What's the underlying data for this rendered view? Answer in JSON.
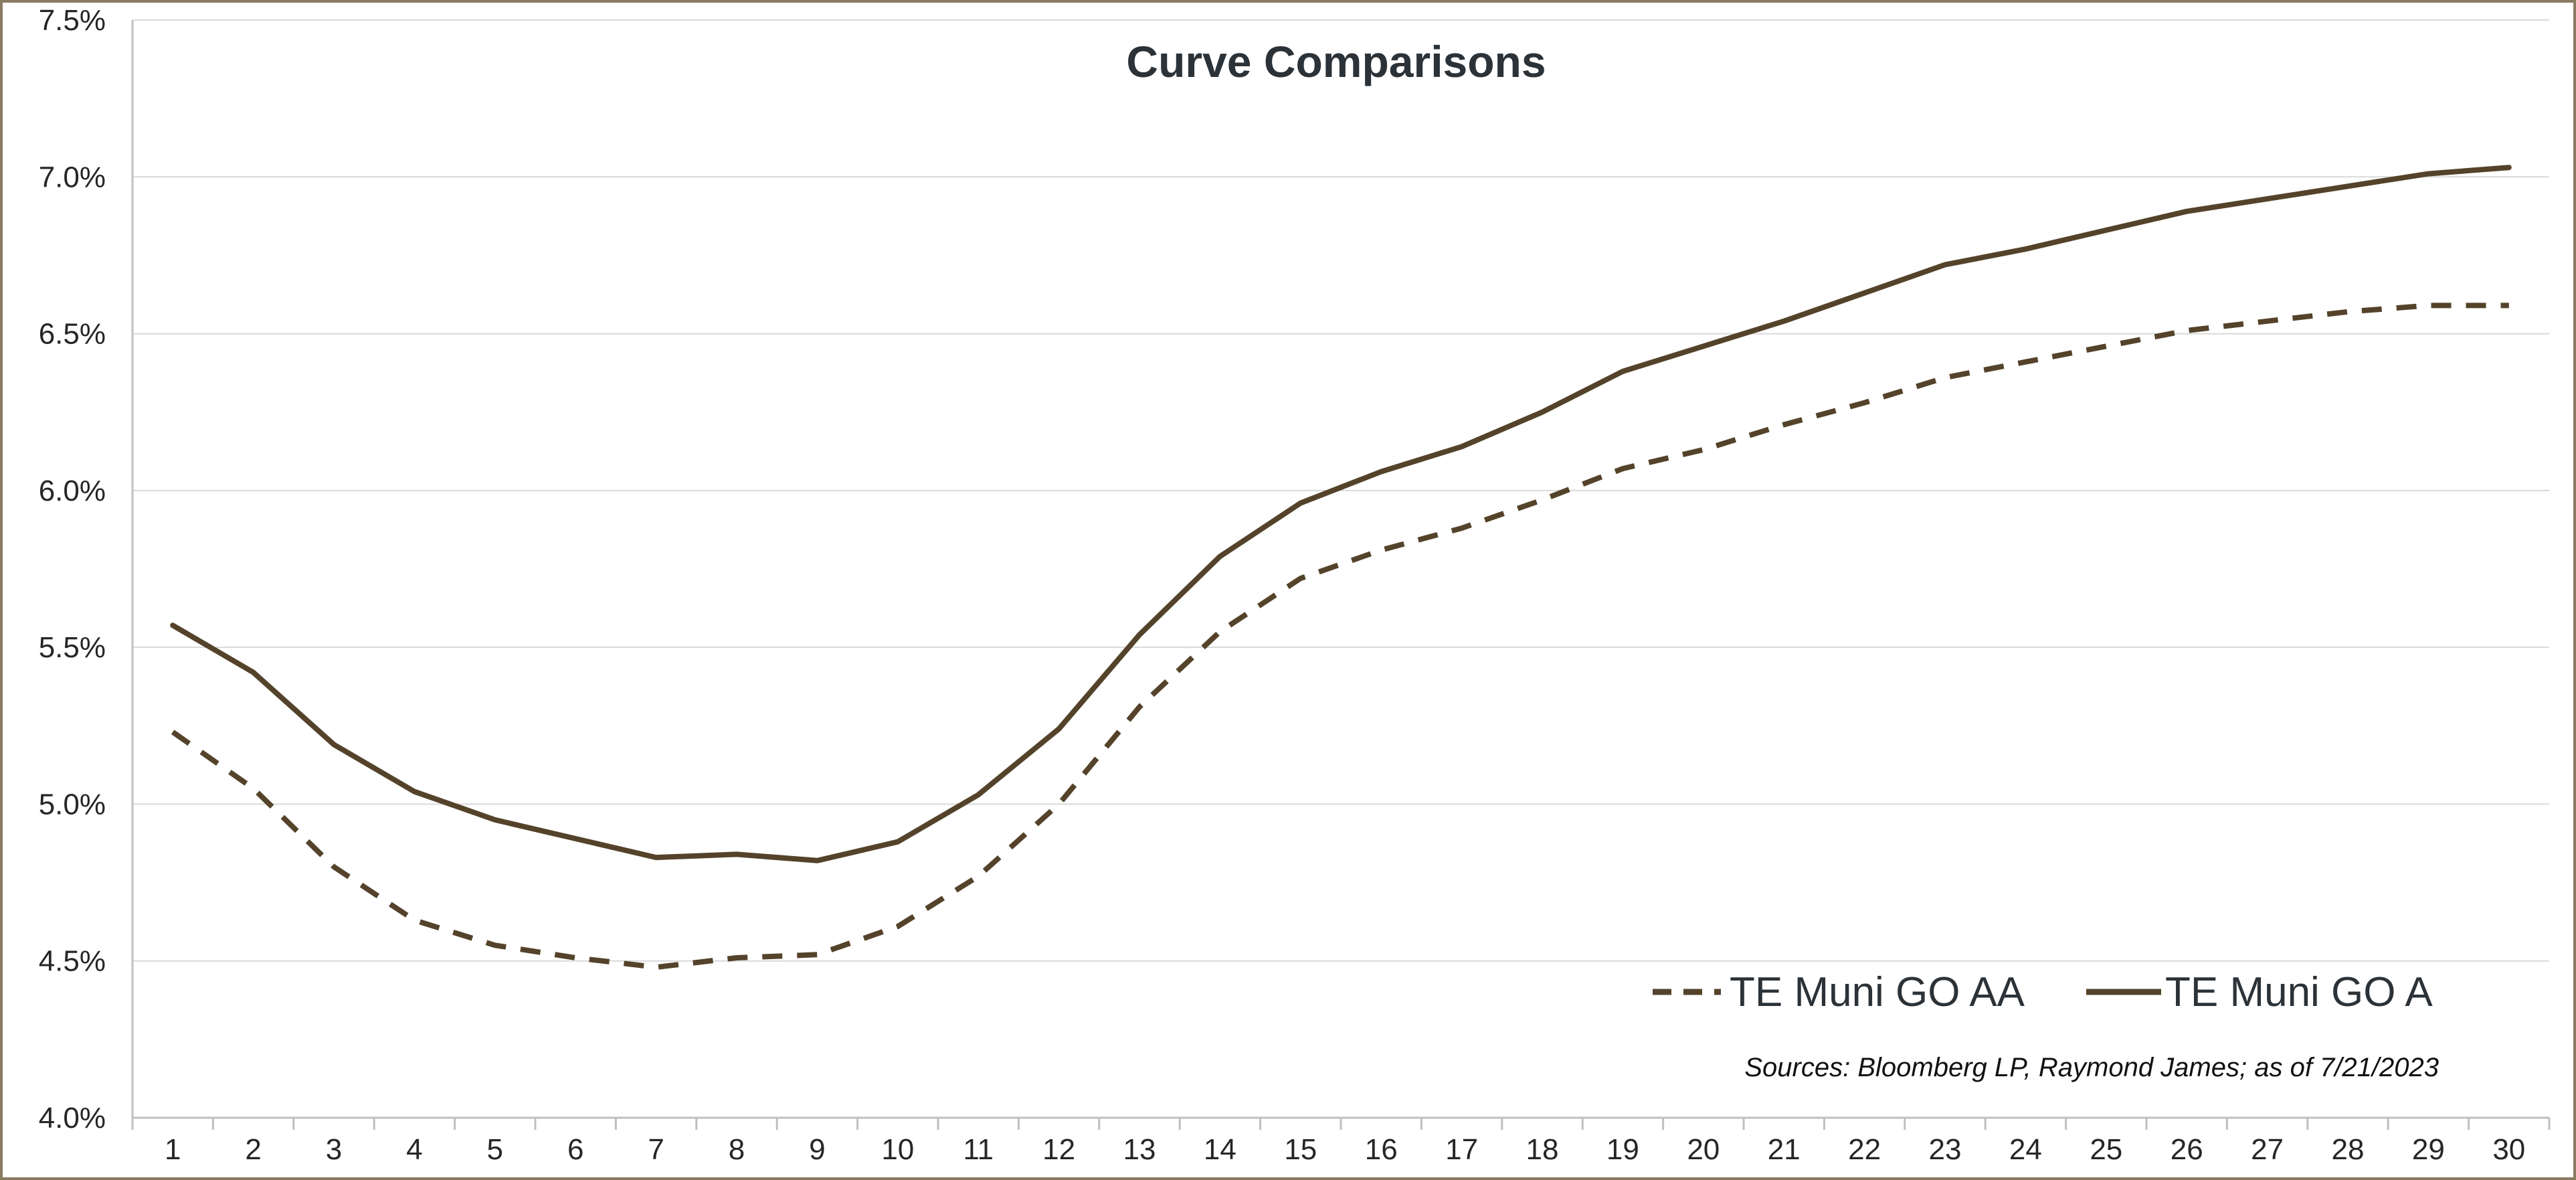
{
  "chart_data": {
    "type": "line",
    "title": "Curve Comparisons",
    "xlabel": "",
    "ylabel": "",
    "x": [
      1,
      2,
      3,
      4,
      5,
      6,
      7,
      8,
      9,
      10,
      11,
      12,
      13,
      14,
      15,
      16,
      17,
      18,
      19,
      20,
      21,
      22,
      23,
      24,
      25,
      26,
      27,
      28,
      29,
      30
    ],
    "xlim": [
      0.5,
      30.5
    ],
    "ylim": [
      4.0,
      7.5
    ],
    "y_ticks": [
      4.0,
      4.5,
      5.0,
      5.5,
      6.0,
      6.5,
      7.0,
      7.5
    ],
    "y_tick_labels": [
      "4.0%",
      "4.5%",
      "5.0%",
      "5.5%",
      "6.0%",
      "6.5%",
      "7.0%",
      "7.5%"
    ],
    "x_tick_labels": [
      "1",
      "2",
      "3",
      "4",
      "5",
      "6",
      "7",
      "8",
      "9",
      "10",
      "11",
      "12",
      "13",
      "14",
      "15",
      "16",
      "17",
      "18",
      "19",
      "20",
      "21",
      "22",
      "23",
      "24",
      "25",
      "26",
      "27",
      "28",
      "29",
      "30"
    ],
    "grid": "horizontal",
    "legend_position": "bottom-right",
    "series": [
      {
        "name": "TE Muni GO AA",
        "style": "dashed",
        "color": "#54432a",
        "values": [
          5.23,
          5.05,
          4.8,
          4.63,
          4.55,
          4.51,
          4.48,
          4.51,
          4.52,
          4.61,
          4.77,
          5.0,
          5.31,
          5.55,
          5.72,
          5.81,
          5.88,
          5.97,
          6.07,
          6.13,
          6.21,
          6.28,
          6.36,
          6.41,
          6.46,
          6.51,
          6.54,
          6.57,
          6.59,
          6.59
        ]
      },
      {
        "name": "TE Muni GO A",
        "style": "solid",
        "color": "#54432a",
        "values": [
          5.57,
          5.42,
          5.19,
          5.04,
          4.95,
          4.89,
          4.83,
          4.84,
          4.82,
          4.88,
          5.03,
          5.24,
          5.54,
          5.79,
          5.96,
          6.06,
          6.14,
          6.25,
          6.38,
          6.46,
          6.54,
          6.63,
          6.72,
          6.77,
          6.83,
          6.89,
          6.93,
          6.97,
          7.01,
          7.03
        ]
      }
    ],
    "annotation": "Sources: Bloomberg LP, Raymond James; as of  7/21/2023"
  }
}
